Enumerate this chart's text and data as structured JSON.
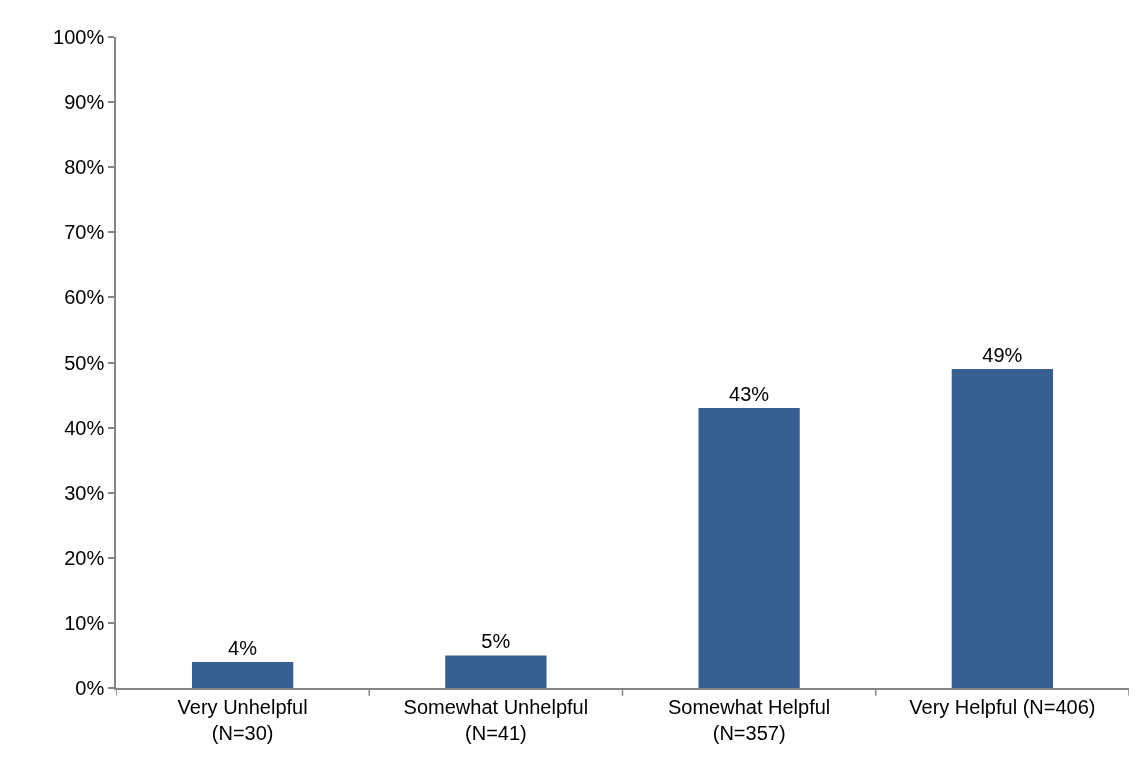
{
  "chart_data": {
    "type": "bar",
    "categories": [
      "Very Unhelpful\n(N=30)",
      "Somewhat Unhelpful\n(N=41)",
      "Somewhat Helpful\n(N=357)",
      "Very Helpful (N=406)"
    ],
    "values": [
      4,
      5,
      43,
      49
    ],
    "color": "#366092",
    "value_labels": [
      "4%",
      "5%",
      "43%",
      "49%"
    ],
    "ylim": [
      0,
      100
    ],
    "yticks": [
      {
        "value": 0,
        "label": "0%"
      },
      {
        "value": 10,
        "label": "10%"
      },
      {
        "value": 20,
        "label": "20%"
      },
      {
        "value": 30,
        "label": "30%"
      },
      {
        "value": 40,
        "label": "40%"
      },
      {
        "value": 50,
        "label": "50%"
      },
      {
        "value": 60,
        "label": "60%"
      },
      {
        "value": 70,
        "label": "70%"
      },
      {
        "value": 80,
        "label": "80%"
      },
      {
        "value": 90,
        "label": "90%"
      },
      {
        "value": 100,
        "label": "100%"
      }
    ]
  }
}
